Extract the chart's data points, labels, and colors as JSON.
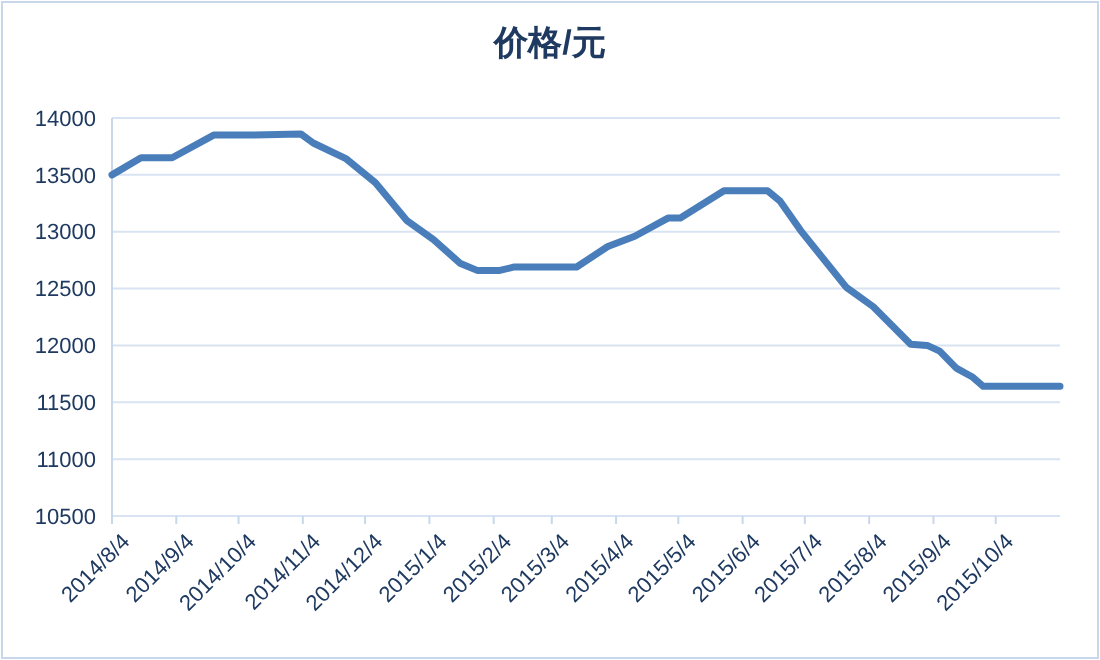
{
  "chart_data": {
    "type": "line",
    "title": "价格/元",
    "x": [
      "2014-08-04",
      "2014-08-18",
      "2014-09-02",
      "2014-09-22",
      "2014-10-11",
      "2014-11-03",
      "2014-11-09",
      "2014-11-25",
      "2014-12-09",
      "2014-12-24",
      "2015-01-06",
      "2015-01-19",
      "2015-01-27",
      "2015-02-07",
      "2015-02-14",
      "2015-03-08",
      "2015-03-16",
      "2015-03-31",
      "2015-04-13",
      "2015-04-29",
      "2015-05-05",
      "2015-05-26",
      "2015-06-16",
      "2015-06-22",
      "2015-07-02",
      "2015-07-24",
      "2015-08-06",
      "2015-08-24",
      "2015-09-01",
      "2015-09-07",
      "2015-09-15",
      "2015-09-23",
      "2015-09-28",
      "2015-11-04"
    ],
    "series": [
      {
        "color": "#4a7ebb",
        "values": [
          13500,
          13650,
          13650,
          13850,
          13850,
          13860,
          13780,
          13640,
          13430,
          13100,
          12930,
          12720,
          12660,
          12660,
          12690,
          12690,
          12690,
          12870,
          12960,
          13120,
          13120,
          13360,
          13360,
          13270,
          13010,
          12510,
          12340,
          12010,
          12000,
          11950,
          11800,
          11720,
          11640,
          11640
        ]
      }
    ],
    "xlim": [
      "2014-08-04",
      "2015-11-04"
    ],
    "xticks": [
      {
        "value": "2014-08-04",
        "label": "2014/8/4"
      },
      {
        "value": "2014-09-04",
        "label": "2014/9/4"
      },
      {
        "value": "2014-10-04",
        "label": "2014/10/4"
      },
      {
        "value": "2014-11-04",
        "label": "2014/11/4"
      },
      {
        "value": "2014-12-04",
        "label": "2014/12/4"
      },
      {
        "value": "2015-01-04",
        "label": "2015/1/4"
      },
      {
        "value": "2015-02-04",
        "label": "2015/2/4"
      },
      {
        "value": "2015-03-04",
        "label": "2015/3/4"
      },
      {
        "value": "2015-04-04",
        "label": "2015/4/4"
      },
      {
        "value": "2015-05-04",
        "label": "2015/5/4"
      },
      {
        "value": "2015-06-04",
        "label": "2015/6/4"
      },
      {
        "value": "2015-07-04",
        "label": "2015/7/4"
      },
      {
        "value": "2015-08-04",
        "label": "2015/8/4"
      },
      {
        "value": "2015-09-04",
        "label": "2015/9/4"
      },
      {
        "value": "2015-10-04",
        "label": "2015/10/4"
      }
    ],
    "ylim": [
      10500,
      14000
    ],
    "yticks": [
      10500,
      11000,
      11500,
      12000,
      12500,
      13000,
      13500,
      14000
    ],
    "grid": "y",
    "marker": "none",
    "line_style": "solid"
  }
}
